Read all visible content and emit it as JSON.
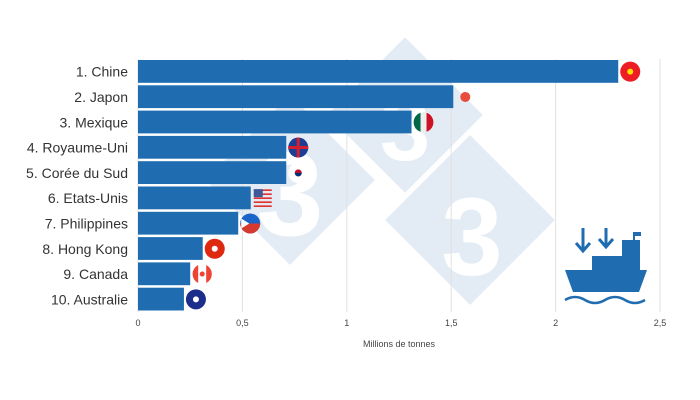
{
  "chart_data": {
    "type": "bar",
    "orientation": "horizontal",
    "categories": [
      "1. Chine",
      "2. Japon",
      "3. Mexique",
      "4. Royaume-Uni",
      "5. Corée du Sud",
      "6. Etats-Unis",
      "7. Philippines",
      "8. Hong Kong",
      "9. Canada",
      "10. Australie"
    ],
    "values": [
      2.3,
      1.51,
      1.31,
      0.71,
      0.71,
      0.54,
      0.48,
      0.31,
      0.25,
      0.22
    ],
    "flags": [
      "china",
      "japan",
      "mexico",
      "united-kingdom",
      "south-korea",
      "united-states",
      "philippines",
      "hong-kong",
      "canada",
      "australia"
    ],
    "xlabel": "Millions de tonnes",
    "ylabel": "",
    "xlim": [
      0,
      2.5
    ],
    "xticks": [
      0,
      0.5,
      1,
      1.5,
      2,
      2.5
    ],
    "xtick_labels": [
      "0",
      "0,5",
      "1",
      "1,5",
      "2",
      "2,5"
    ],
    "grid": "vertical",
    "bar_color": "#1f6db0",
    "watermark": "3",
    "icon": "cargo-ship-icon"
  }
}
